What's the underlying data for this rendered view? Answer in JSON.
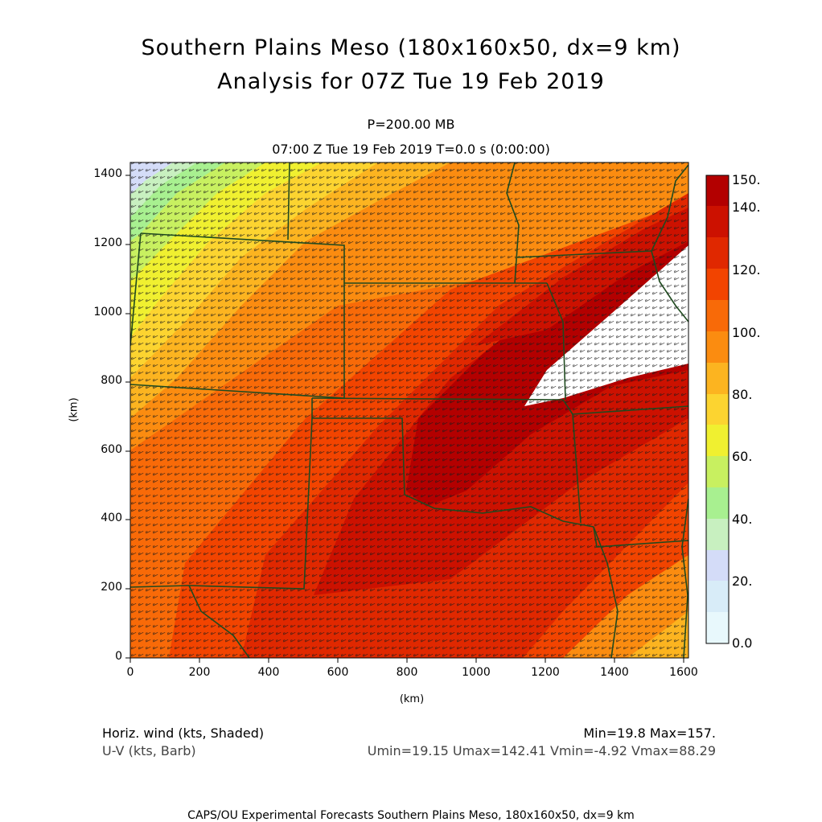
{
  "title": {
    "line1": "Southern Plains Meso (180x160x50, dx=9 km)",
    "line2": "Analysis for 07Z Tue 19 Feb 2019"
  },
  "subtitle": {
    "level": "P=200.00 MB",
    "time": "07:00 Z Tue 19 Feb 2019    T=0.0 s (0:00:00)"
  },
  "axes": {
    "xlabel": "(km)",
    "ylabel": "(km)",
    "x_ticks": [
      "0",
      "200",
      "400",
      "600",
      "800",
      "1000",
      "1200",
      "1400",
      "1600"
    ],
    "y_ticks": [
      "0",
      "200",
      "400",
      "600",
      "800",
      "1000",
      "1200",
      "1400"
    ],
    "xlim": [
      0,
      1620
    ],
    "ylim": [
      0,
      1440
    ]
  },
  "colorbar": {
    "labels": [
      "150.",
      "140.",
      "120.",
      "100.",
      "80.",
      "60.",
      "40.",
      "20.",
      "0.0"
    ],
    "colors": [
      "#b30000",
      "#cc1100",
      "#e02800",
      "#f24400",
      "#f86a08",
      "#fb8c10",
      "#fcb420",
      "#fcd430",
      "#f0f030",
      "#c8f060",
      "#a8f090",
      "#c8f0c0",
      "#d4dcf8",
      "#d8ecf8",
      "#e8f8fc"
    ]
  },
  "legend": {
    "field1": "Horiz. wind (kts, Shaded)",
    "field2": "U-V (kts, Barb)",
    "minmax": "Min=19.8 Max=157.",
    "uv_range": "Umin=19.15 Umax=142.41 Vmin=-4.92 Vmax=88.29"
  },
  "footer": "CAPS/OU Experimental Forecasts  Southern Plains Meso, 180x160x50, dx=9 km"
}
